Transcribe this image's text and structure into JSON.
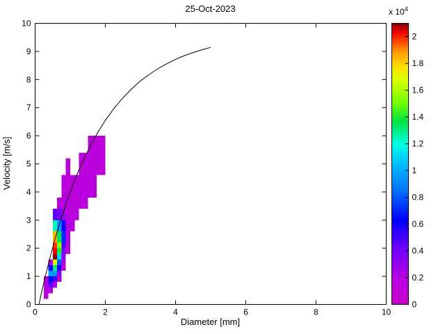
{
  "chart_data": {
    "type": "heatmap",
    "title": "25-Oct-2023",
    "xlabel": "Diameter [mm]",
    "ylabel": "Velocity [m/s]",
    "xlim": [
      0,
      10
    ],
    "ylim": [
      0,
      10
    ],
    "xtick_values": [
      0,
      2,
      4,
      6,
      8,
      10
    ],
    "xtick_labels": [
      "0",
      "2",
      "4",
      "6",
      "8",
      "10"
    ],
    "ytick_values": [
      0,
      1,
      2,
      3,
      4,
      5,
      6,
      7,
      8,
      9,
      10
    ],
    "ytick_labels": [
      "0",
      "1",
      "2",
      "3",
      "4",
      "5",
      "6",
      "7",
      "8",
      "9",
      "10"
    ],
    "colorbar": {
      "exponent_prefix": "x 10",
      "exponent": "4",
      "tick_values": [
        0,
        0.2,
        0.4,
        0.6,
        0.8,
        1,
        1.2,
        1.4,
        1.6,
        1.8,
        2
      ],
      "tick_labels": [
        "0",
        "0.2",
        "0.4",
        "0.6",
        "0.8",
        "1",
        "1.2",
        "1.4",
        "1.6",
        "1.8",
        "2"
      ],
      "tick_unit": 10000,
      "cmax": 21000,
      "colormap_stops": [
        {
          "t": 0.0,
          "rgb": [
            204,
            0,
            204
          ]
        },
        {
          "t": 0.1,
          "rgb": [
            178,
            0,
            226
          ]
        },
        {
          "t": 0.2,
          "rgb": [
            110,
            0,
            255
          ]
        },
        {
          "t": 0.3,
          "rgb": [
            0,
            0,
            255
          ]
        },
        {
          "t": 0.4,
          "rgb": [
            0,
            110,
            255
          ]
        },
        {
          "t": 0.5,
          "rgb": [
            0,
            190,
            255
          ]
        },
        {
          "t": 0.57,
          "rgb": [
            0,
            255,
            230
          ]
        },
        {
          "t": 0.65,
          "rgb": [
            0,
            225,
            70
          ]
        },
        {
          "t": 0.72,
          "rgb": [
            120,
            255,
            0
          ]
        },
        {
          "t": 0.8,
          "rgb": [
            220,
            255,
            0
          ]
        },
        {
          "t": 0.85,
          "rgb": [
            255,
            220,
            0
          ]
        },
        {
          "t": 0.9,
          "rgb": [
            255,
            150,
            0
          ]
        },
        {
          "t": 0.94,
          "rgb": [
            255,
            60,
            0
          ]
        },
        {
          "t": 0.97,
          "rgb": [
            235,
            0,
            0
          ]
        },
        {
          "t": 1.0,
          "rgb": [
            128,
            0,
            0
          ]
        }
      ]
    },
    "cells": {
      "columns": "d_min,d_max,v_min,v_max,count",
      "values": [
        [
          0.25,
          0.375,
          0.2,
          0.4,
          1200
        ],
        [
          0.25,
          0.375,
          0.4,
          0.6,
          1500
        ],
        [
          0.25,
          0.375,
          0.6,
          0.8,
          1800
        ],
        [
          0.25,
          0.375,
          0.8,
          1.0,
          1600
        ],
        [
          0.375,
          0.5,
          0.4,
          0.6,
          1800
        ],
        [
          0.375,
          0.5,
          0.6,
          0.8,
          4500
        ],
        [
          0.375,
          0.5,
          0.8,
          1.0,
          6500
        ],
        [
          0.375,
          0.5,
          1.0,
          1.2,
          9500
        ],
        [
          0.375,
          0.5,
          1.2,
          1.4,
          6000
        ],
        [
          0.375,
          0.5,
          1.4,
          1.6,
          2000
        ],
        [
          0.5,
          0.625,
          0.6,
          0.8,
          2000
        ],
        [
          0.5,
          0.625,
          0.8,
          1.0,
          5000
        ],
        [
          0.5,
          0.625,
          1.0,
          1.2,
          9500
        ],
        [
          0.5,
          0.625,
          1.2,
          1.4,
          13000
        ],
        [
          0.5,
          0.625,
          1.4,
          1.6,
          17000
        ],
        [
          0.5,
          0.625,
          1.6,
          1.8,
          21000
        ],
        [
          0.5,
          0.625,
          1.8,
          2.0,
          20400
        ],
        [
          0.5,
          0.625,
          2.0,
          2.2,
          19800
        ],
        [
          0.5,
          0.625,
          2.2,
          2.6,
          18500
        ],
        [
          0.5,
          0.625,
          2.6,
          3.0,
          12500
        ],
        [
          0.5,
          0.625,
          3.0,
          3.4,
          4500
        ],
        [
          0.625,
          0.75,
          0.8,
          1.0,
          1800
        ],
        [
          0.625,
          0.75,
          1.0,
          1.2,
          3500
        ],
        [
          0.625,
          0.75,
          1.2,
          1.4,
          5500
        ],
        [
          0.625,
          0.75,
          1.4,
          1.6,
          8000
        ],
        [
          0.625,
          0.75,
          1.6,
          1.8,
          11000
        ],
        [
          0.625,
          0.75,
          1.8,
          2.0,
          14000
        ],
        [
          0.625,
          0.75,
          2.0,
          2.2,
          15500
        ],
        [
          0.625,
          0.75,
          2.2,
          2.6,
          13500
        ],
        [
          0.625,
          0.75,
          2.6,
          3.0,
          9500
        ],
        [
          0.625,
          0.75,
          3.0,
          3.4,
          4000
        ],
        [
          0.625,
          0.75,
          3.4,
          3.8,
          1600
        ],
        [
          0.75,
          0.875,
          1.2,
          1.4,
          1500
        ],
        [
          0.75,
          0.875,
          1.4,
          1.6,
          2200
        ],
        [
          0.75,
          0.875,
          1.6,
          1.8,
          3000
        ],
        [
          0.75,
          0.875,
          1.8,
          2.0,
          3800
        ],
        [
          0.75,
          0.875,
          2.0,
          2.2,
          5000
        ],
        [
          0.75,
          0.875,
          2.2,
          2.6,
          7000
        ],
        [
          0.75,
          0.875,
          2.6,
          3.0,
          6000
        ],
        [
          0.75,
          0.875,
          3.0,
          3.4,
          3000
        ],
        [
          0.75,
          0.875,
          3.4,
          3.8,
          1800
        ],
        [
          0.75,
          0.875,
          3.8,
          4.6,
          1500
        ],
        [
          0.875,
          1.0,
          1.8,
          2.0,
          1400
        ],
        [
          0.875,
          1.0,
          2.0,
          2.2,
          1600
        ],
        [
          0.875,
          1.0,
          2.2,
          2.6,
          2000
        ],
        [
          0.875,
          1.0,
          2.6,
          3.0,
          1900
        ],
        [
          0.875,
          1.0,
          3.0,
          3.4,
          1700
        ],
        [
          0.875,
          1.0,
          3.4,
          3.8,
          1500
        ],
        [
          0.875,
          1.0,
          3.8,
          4.6,
          1400
        ],
        [
          0.875,
          1.0,
          4.6,
          5.2,
          1300
        ],
        [
          1.0,
          1.125,
          2.6,
          3.0,
          1500
        ],
        [
          1.0,
          1.125,
          3.0,
          3.4,
          1600
        ],
        [
          1.0,
          1.125,
          3.4,
          3.8,
          1500
        ],
        [
          1.0,
          1.125,
          3.8,
          4.6,
          1500
        ],
        [
          1.125,
          1.25,
          3.0,
          3.4,
          1400
        ],
        [
          1.125,
          1.25,
          3.4,
          3.8,
          1500
        ],
        [
          1.125,
          1.25,
          3.8,
          4.6,
          1500
        ],
        [
          1.25,
          1.5,
          3.4,
          3.8,
          1400
        ],
        [
          1.25,
          1.5,
          3.8,
          4.6,
          1700
        ],
        [
          1.25,
          1.5,
          4.6,
          5.4,
          1400
        ],
        [
          1.5,
          1.75,
          3.8,
          4.6,
          1500
        ],
        [
          1.5,
          1.75,
          4.6,
          5.4,
          1600
        ],
        [
          1.5,
          1.75,
          5.4,
          6.0,
          1300
        ],
        [
          1.75,
          2.0,
          4.6,
          5.4,
          1300
        ],
        [
          1.75,
          2.0,
          5.4,
          6.0,
          1200
        ]
      ]
    },
    "curve": {
      "name": "terminal-velocity-curve",
      "points": [
        [
          0.11,
          0
        ],
        [
          0.2,
          0.52
        ],
        [
          0.3,
          1.05
        ],
        [
          0.4,
          1.55
        ],
        [
          0.5,
          2.02
        ],
        [
          0.6,
          2.46
        ],
        [
          0.7,
          2.88
        ],
        [
          0.8,
          3.28
        ],
        [
          0.9,
          3.65
        ],
        [
          1.0,
          4.0
        ],
        [
          1.2,
          4.64
        ],
        [
          1.4,
          5.2
        ],
        [
          1.6,
          5.71
        ],
        [
          1.8,
          6.15
        ],
        [
          2.0,
          6.55
        ],
        [
          2.25,
          6.98
        ],
        [
          2.5,
          7.35
        ],
        [
          2.75,
          7.67
        ],
        [
          3.0,
          7.95
        ],
        [
          3.25,
          8.18
        ],
        [
          3.5,
          8.39
        ],
        [
          3.75,
          8.56
        ],
        [
          4.0,
          8.72
        ],
        [
          4.25,
          8.85
        ],
        [
          4.5,
          8.96
        ],
        [
          4.75,
          9.06
        ],
        [
          5.0,
          9.14
        ]
      ]
    }
  }
}
